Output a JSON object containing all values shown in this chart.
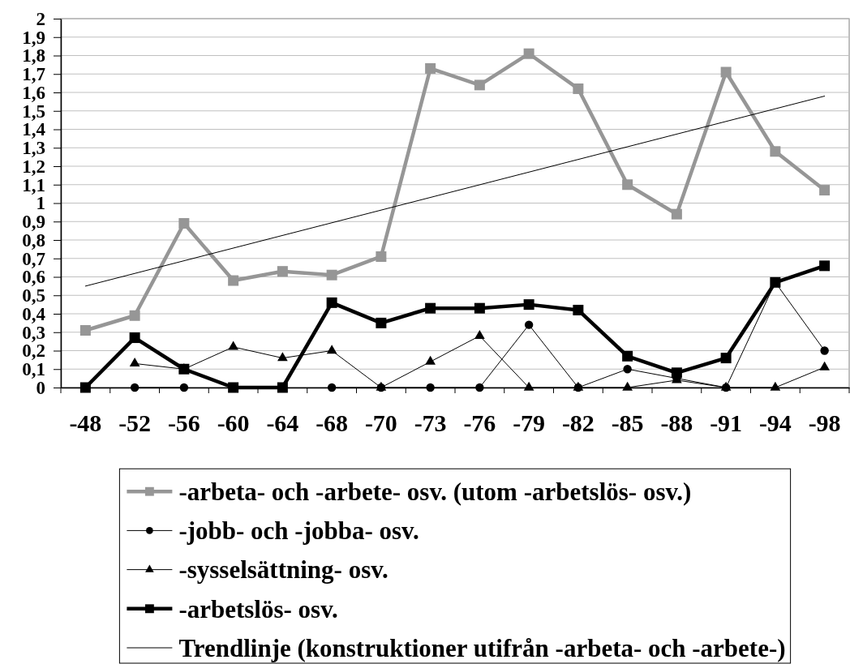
{
  "chart_data": {
    "type": "line",
    "categories": [
      "-48",
      "-52",
      "-56",
      "-60",
      "-64",
      "-68",
      "-70",
      "-73",
      "-76",
      "-79",
      "-82",
      "-85",
      "-88",
      "-91",
      "-94",
      "-98"
    ],
    "series": [
      {
        "name": "-arbeta- och -arbete- osv. (utom -arbetslös- osv.)",
        "color": "#969696",
        "marker": "square",
        "values": [
          0.31,
          0.39,
          0.89,
          0.58,
          0.63,
          0.61,
          0.71,
          1.73,
          1.64,
          1.81,
          1.62,
          1.1,
          0.94,
          1.71,
          1.28,
          1.07
        ]
      },
      {
        "name": "-jobb- och -jobba- osv.",
        "color": "#000000",
        "marker": "circle",
        "values": [
          null,
          0,
          0,
          null,
          null,
          0,
          0,
          0,
          0,
          0.34,
          0,
          0.1,
          0.05,
          0,
          0.57,
          0.2
        ]
      },
      {
        "name": "-sysselsättning- osv.",
        "color": "#000000",
        "marker": "triangle",
        "values": [
          null,
          0.13,
          0.1,
          0.22,
          0.16,
          0.2,
          0,
          0.14,
          0.28,
          0,
          0,
          0,
          0.04,
          0,
          0,
          0.11
        ]
      },
      {
        "name": "-arbetslös- osv.",
        "color": "#000000",
        "marker": "square",
        "values": [
          0,
          0.27,
          0.1,
          0,
          0,
          0.46,
          0.35,
          0.43,
          0.43,
          0.45,
          0.42,
          0.17,
          0.08,
          0.16,
          0.57,
          0.66
        ]
      },
      {
        "name": "Trendlinje (konstruktioner utifrån -arbeta- och -arbete-)",
        "color": "#000000",
        "marker": "none",
        "x": [
          "-48",
          "-98"
        ],
        "values": [
          0.55,
          1.58
        ]
      }
    ],
    "ylim": [
      0,
      2
    ],
    "yticks": [
      0,
      {
        "value": 0.1,
        "label": "0,1"
      },
      {
        "value": 0.2,
        "label": "0,2"
      },
      {
        "value": 0.3,
        "label": "0,3"
      },
      {
        "value": 0.4,
        "label": "0,4"
      },
      {
        "value": 0.5,
        "label": "0,5"
      },
      {
        "value": 0.6,
        "label": "0,6"
      },
      {
        "value": 0.7,
        "label": "0,7"
      },
      {
        "value": 0.8,
        "label": "0,8"
      },
      {
        "value": 0.9,
        "label": "0,9"
      },
      1,
      {
        "value": 1.1,
        "label": "1,1"
      },
      {
        "value": 1.2,
        "label": "1,2"
      },
      {
        "value": 1.3,
        "label": "1,3"
      },
      {
        "value": 1.4,
        "label": "1,4"
      },
      {
        "value": 1.5,
        "label": "1,5"
      },
      {
        "value": 1.6,
        "label": "1,6"
      },
      {
        "value": 1.7,
        "label": "1,7"
      },
      {
        "value": 1.8,
        "label": "1,8"
      },
      {
        "value": 1.9,
        "label": "1,9"
      },
      2
    ],
    "grid": "y",
    "legend": "bottom"
  }
}
